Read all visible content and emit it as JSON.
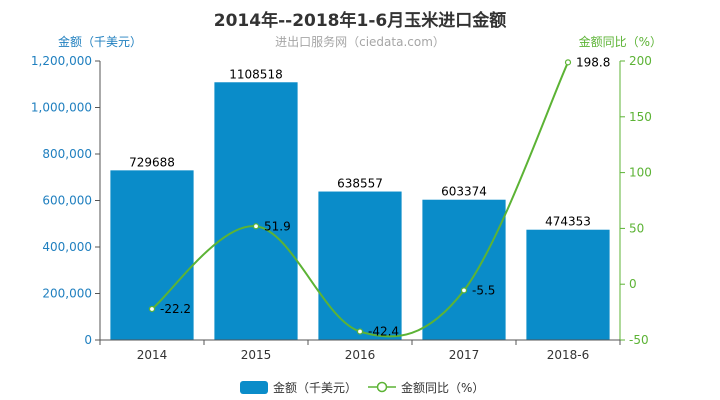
{
  "title": "2014年--2018年1-6月玉米进口金额",
  "subtitle": "进出口服务网（ciedata.com）",
  "colors": {
    "bar": "#0a8cc9",
    "line": "#5cb335",
    "left_axis": "#1f7fbf",
    "right_axis": "#5cb335",
    "label": "#000000",
    "axis_tick": "#333333"
  },
  "chart_data": {
    "type": "bar",
    "categories": [
      "2014",
      "2015",
      "2016",
      "2017",
      "2018-6"
    ],
    "left_axis": {
      "label": "金额（千美元）",
      "min": 0,
      "max": 1200000,
      "step": 200000,
      "tick_labels": [
        "0",
        "200,000",
        "400,000",
        "600,000",
        "800,000",
        "1,000,000",
        "1,200,000"
      ]
    },
    "right_axis": {
      "label": "金额同比（%）",
      "min": -50,
      "max": 200,
      "step": 50,
      "tick_labels": [
        "-50",
        "0",
        "50",
        "100",
        "150",
        "200"
      ]
    },
    "series": [
      {
        "name": "金额（千美元）",
        "type": "bar",
        "axis": "left",
        "values": [
          729688,
          1108518,
          638557,
          603374,
          474353
        ],
        "labels": [
          "729688",
          "1108518",
          "638557",
          "603374",
          "474353"
        ]
      },
      {
        "name": "金额同比（%）",
        "type": "line",
        "axis": "right",
        "values": [
          -22.2,
          51.9,
          -42.4,
          -5.5,
          198.8
        ],
        "labels": [
          "-22.2",
          "51.9",
          "-42.4",
          "-5.5",
          "198.8"
        ]
      }
    ],
    "legend_position": "bottom-center",
    "grid": false
  }
}
